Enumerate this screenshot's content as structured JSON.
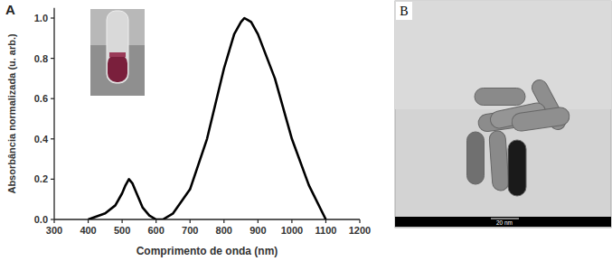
{
  "chart_data": {
    "type": "line",
    "panel_label": "A",
    "x_label": "Comprimento de onda (nm)",
    "y_label": "Absorbância normalizada (u. arb.)",
    "x": [
      400,
      450,
      480,
      500,
      510,
      520,
      530,
      540,
      560,
      580,
      600,
      620,
      650,
      700,
      750,
      800,
      830,
      850,
      860,
      870,
      880,
      900,
      950,
      1000,
      1050,
      1100
    ],
    "series": [
      {
        "color": "#000000",
        "line_style": "solid",
        "values": [
          0.0,
          0.03,
          0.07,
          0.13,
          0.17,
          0.2,
          0.18,
          0.14,
          0.06,
          0.02,
          0.0,
          0.0,
          0.03,
          0.15,
          0.4,
          0.75,
          0.92,
          0.98,
          1.0,
          0.99,
          0.98,
          0.92,
          0.7,
          0.4,
          0.17,
          0.0
        ]
      }
    ],
    "xlim": [
      300,
      1200
    ],
    "xticks": [
      300,
      400,
      500,
      600,
      700,
      800,
      900,
      1000,
      1100,
      1200
    ],
    "ylim": [
      0,
      1.05
    ],
    "yticks": [
      {
        "value": 0,
        "label": "0.0"
      },
      0.2,
      0.4,
      0.6,
      0.8,
      {
        "value": 1,
        "label": "1.0"
      }
    ],
    "grid": false
  },
  "image_panel": {
    "label": "B",
    "scale_bar": "20 nm"
  }
}
